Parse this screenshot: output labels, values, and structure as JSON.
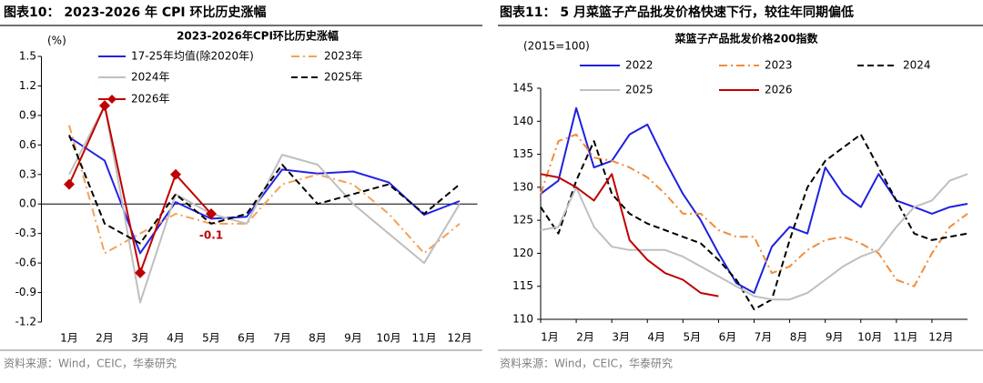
{
  "chart_data": [
    {
      "type": "line",
      "heading": "图表10： 2023-2026 年 CPI 环比历史涨幅",
      "source": "资料来源：Wind，CEIC，华泰研究",
      "title": "2023-2026年CPI环比历史涨幅",
      "y_label": "(%)",
      "categories": [
        "1月",
        "2月",
        "3月",
        "4月",
        "5月",
        "6月",
        "7月",
        "8月",
        "9月",
        "10月",
        "11月",
        "12月"
      ],
      "ylim": [
        -1.2,
        1.5
      ],
      "yticks": [
        1.5,
        1.2,
        0.9,
        0.6,
        0.3,
        {
          "value": 0,
          "label": "0.0"
        },
        -0.3,
        -0.6,
        -0.9,
        -1.2
      ],
      "legend_columns": 2,
      "series": [
        {
          "name": "17-25年均值(除2020年)",
          "color": "#2323e6",
          "dash": "solid",
          "values": [
            0.68,
            0.44,
            -0.5,
            0.02,
            -0.15,
            -0.13,
            0.35,
            0.31,
            0.33,
            0.22,
            -0.11,
            0.03
          ]
        },
        {
          "name": "2023年",
          "color": "#f4a15a",
          "dash": "dashdot",
          "values": [
            0.8,
            -0.5,
            -0.3,
            -0.1,
            -0.2,
            -0.2,
            0.2,
            0.3,
            0.2,
            -0.1,
            -0.5,
            -0.2
          ]
        },
        {
          "name": "2024年",
          "color": "#bfbfbf",
          "dash": "solid",
          "values": [
            0.3,
            1.0,
            -1.0,
            0.1,
            -0.1,
            -0.2,
            0.5,
            0.4,
            0.0,
            -0.3,
            -0.6,
            0.0
          ]
        },
        {
          "name": "2025年",
          "color": "#000000",
          "dash": "dash",
          "values": [
            0.7,
            -0.2,
            -0.4,
            0.1,
            -0.2,
            -0.1,
            0.4,
            0.0,
            0.1,
            0.2,
            -0.1,
            0.2
          ]
        },
        {
          "name": "2026年",
          "color": "#c00000",
          "dash": "solid",
          "marker": "diamond",
          "values": [
            0.2,
            1.0,
            -0.7,
            0.3,
            -0.1,
            null,
            null,
            null,
            null,
            null,
            null,
            null
          ],
          "value_labels": [
            null,
            null,
            null,
            null,
            "-0.1",
            null,
            null,
            null,
            null,
            null,
            null,
            null
          ]
        }
      ]
    },
    {
      "type": "line",
      "heading": "图表11： 5 月菜篮子产品批发价格快速下行，较往年同期偏低",
      "source": "资料来源：Wind，CEIC，华泰研究",
      "title": "菜篮子产品批发价格200指数",
      "y_label": "(2015=100)",
      "x": [
        0,
        0.5,
        1,
        1.5,
        2,
        2.5,
        3,
        3.5,
        4,
        4.5,
        5,
        5.5,
        6,
        6.5,
        7,
        7.5,
        8,
        8.5,
        9,
        9.5,
        10,
        10.5,
        11,
        11.5,
        12
      ],
      "xlim": [
        0,
        12
      ],
      "xticks": [
        {
          "value": 0,
          "label": "1月"
        },
        {
          "value": 1,
          "label": "2月"
        },
        {
          "value": 2,
          "label": "3月"
        },
        {
          "value": 3,
          "label": "4月"
        },
        {
          "value": 4,
          "label": "5月"
        },
        {
          "value": 5,
          "label": "6月"
        },
        {
          "value": 6,
          "label": "7月"
        },
        {
          "value": 7,
          "label": "8月"
        },
        {
          "value": 8,
          "label": "9月"
        },
        {
          "value": 9,
          "label": "10月"
        },
        {
          "value": 10,
          "label": "11月"
        },
        {
          "value": 11,
          "label": "12月"
        }
      ],
      "ylim": [
        110,
        145
      ],
      "yticks": [
        145,
        140,
        135,
        130,
        125,
        120,
        115,
        110
      ],
      "legend_columns": 3,
      "series": [
        {
          "name": "2022",
          "color": "#1f1fe0",
          "dash": "solid",
          "values": [
            129,
            131,
            142,
            133,
            134,
            138,
            139.5,
            134,
            129,
            125,
            120,
            115.5,
            114,
            121,
            124,
            123,
            133,
            129,
            127,
            132,
            128,
            127,
            126,
            127,
            127.5
          ]
        },
        {
          "name": "2023",
          "color": "#f08c3c",
          "dash": "dashdot",
          "values": [
            129,
            137,
            138,
            134.5,
            134,
            133,
            131.5,
            129,
            126,
            126,
            123.5,
            122.5,
            122.5,
            117,
            118,
            120.5,
            122,
            122.5,
            121.5,
            120,
            116,
            115,
            120,
            124,
            126
          ]
        },
        {
          "name": "2024",
          "color": "#000000",
          "dash": "dash",
          "values": [
            127,
            123,
            131,
            137,
            129,
            126,
            124.5,
            123.5,
            122.5,
            121.5,
            119,
            116,
            111.5,
            113,
            122,
            130,
            134,
            136,
            138,
            133,
            128,
            123,
            122,
            122.5,
            123
          ]
        },
        {
          "name": "2025",
          "color": "#bfbfbf",
          "dash": "solid",
          "values": [
            123.5,
            124,
            130,
            124,
            121,
            120.5,
            120.5,
            120.5,
            119.5,
            118,
            116.5,
            115,
            113.5,
            113,
            113,
            114,
            116,
            118,
            119.5,
            120.5,
            124,
            127,
            128,
            131,
            132
          ]
        },
        {
          "name": "2026",
          "color": "#c00000",
          "dash": "solid",
          "values": [
            132,
            131.5,
            130,
            128,
            132,
            122,
            119,
            117,
            116,
            114,
            113.5,
            null,
            null,
            null,
            null,
            null,
            null,
            null,
            null,
            null,
            null,
            null,
            null,
            null,
            null
          ]
        }
      ]
    }
  ]
}
